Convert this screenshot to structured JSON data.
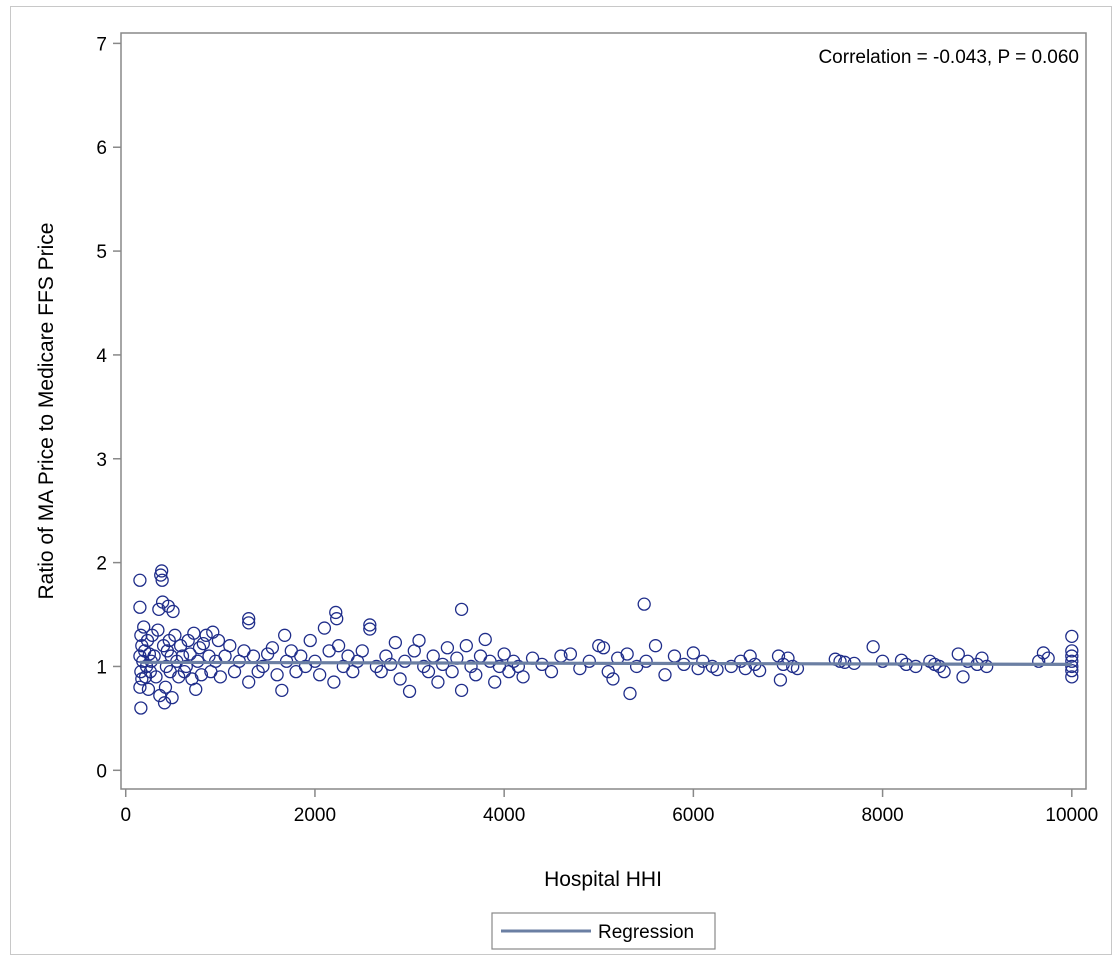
{
  "chart_data": {
    "type": "scatter",
    "xlabel": "Hospital HHI",
    "ylabel": "Ratio of  MA Price to Medicare FFS Price",
    "annotation": "Correlation = -0.043, P = 0.060",
    "xlim": [
      -50,
      10150
    ],
    "ylim": [
      -0.18,
      7.1
    ],
    "xticks": [
      0,
      2000,
      4000,
      6000,
      8000,
      10000
    ],
    "yticks": [
      0,
      1,
      2,
      3,
      4,
      5,
      6,
      7
    ],
    "grid": false,
    "legend": {
      "position": "bottom-center",
      "entries": [
        "Regression"
      ]
    },
    "colors": {
      "points": "#1f2d8a",
      "regression": "#6b7fa3",
      "axis": "#888888"
    },
    "regression": {
      "name": "Regression",
      "x": [
        150,
        10000
      ],
      "y": [
        1.04,
        1.02
      ]
    },
    "series": [
      {
        "marker": "open-circle",
        "points": [
          [
            150,
            1.83
          ],
          [
            150,
            1.57
          ],
          [
            160,
            1.3
          ],
          [
            170,
            1.2
          ],
          [
            150,
            1.1
          ],
          [
            160,
            0.95
          ],
          [
            150,
            0.8
          ],
          [
            160,
            0.6
          ],
          [
            170,
            0.88
          ],
          [
            180,
            1.05
          ],
          [
            190,
            1.38
          ],
          [
            200,
            1.15
          ],
          [
            210,
            0.9
          ],
          [
            220,
            1.0
          ],
          [
            230,
            1.25
          ],
          [
            240,
            0.78
          ],
          [
            250,
            1.12
          ],
          [
            260,
            0.95
          ],
          [
            270,
            1.05
          ],
          [
            280,
            1.3
          ],
          [
            300,
            1.1
          ],
          [
            320,
            0.9
          ],
          [
            340,
            1.35
          ],
          [
            350,
            1.55
          ],
          [
            360,
            0.72
          ],
          [
            370,
            1.88
          ],
          [
            380,
            1.92
          ],
          [
            385,
            1.83
          ],
          [
            390,
            1.62
          ],
          [
            400,
            1.2
          ],
          [
            410,
            0.65
          ],
          [
            420,
            0.8
          ],
          [
            430,
            1.0
          ],
          [
            440,
            1.15
          ],
          [
            450,
            1.58
          ],
          [
            460,
            1.25
          ],
          [
            470,
            0.95
          ],
          [
            480,
            1.1
          ],
          [
            490,
            0.7
          ],
          [
            500,
            1.53
          ],
          [
            520,
            1.3
          ],
          [
            540,
            1.05
          ],
          [
            560,
            0.9
          ],
          [
            580,
            1.2
          ],
          [
            600,
            1.1
          ],
          [
            620,
            0.95
          ],
          [
            640,
            1.0
          ],
          [
            660,
            1.25
          ],
          [
            680,
            1.12
          ],
          [
            700,
            0.88
          ],
          [
            720,
            1.32
          ],
          [
            740,
            0.78
          ],
          [
            760,
            1.05
          ],
          [
            780,
            1.18
          ],
          [
            800,
            0.92
          ],
          [
            820,
            1.22
          ],
          [
            850,
            1.3
          ],
          [
            880,
            1.1
          ],
          [
            900,
            0.95
          ],
          [
            920,
            1.33
          ],
          [
            950,
            1.05
          ],
          [
            980,
            1.25
          ],
          [
            1000,
            0.9
          ],
          [
            1050,
            1.1
          ],
          [
            1100,
            1.2
          ],
          [
            1150,
            0.95
          ],
          [
            1200,
            1.05
          ],
          [
            1250,
            1.15
          ],
          [
            1300,
            1.46
          ],
          [
            1300,
            1.42
          ],
          [
            1300,
            0.85
          ],
          [
            1350,
            1.1
          ],
          [
            1400,
            0.95
          ],
          [
            1450,
            1.0
          ],
          [
            1500,
            1.12
          ],
          [
            1550,
            1.18
          ],
          [
            1600,
            0.92
          ],
          [
            1650,
            0.77
          ],
          [
            1680,
            1.3
          ],
          [
            1700,
            1.05
          ],
          [
            1750,
            1.15
          ],
          [
            1800,
            0.95
          ],
          [
            1850,
            1.1
          ],
          [
            1900,
            1.0
          ],
          [
            1950,
            1.25
          ],
          [
            2000,
            1.05
          ],
          [
            2050,
            0.92
          ],
          [
            2100,
            1.37
          ],
          [
            2150,
            1.15
          ],
          [
            2200,
            0.85
          ],
          [
            2220,
            1.52
          ],
          [
            2230,
            1.46
          ],
          [
            2250,
            1.2
          ],
          [
            2300,
            1.0
          ],
          [
            2350,
            1.1
          ],
          [
            2400,
            0.95
          ],
          [
            2450,
            1.05
          ],
          [
            2500,
            1.15
          ],
          [
            2580,
            1.4
          ],
          [
            2580,
            1.36
          ],
          [
            2650,
            1.0
          ],
          [
            2700,
            0.95
          ],
          [
            2750,
            1.1
          ],
          [
            2800,
            1.02
          ],
          [
            2850,
            1.23
          ],
          [
            2900,
            0.88
          ],
          [
            2950,
            1.05
          ],
          [
            3000,
            0.76
          ],
          [
            3050,
            1.15
          ],
          [
            3100,
            1.25
          ],
          [
            3150,
            1.0
          ],
          [
            3200,
            0.95
          ],
          [
            3250,
            1.1
          ],
          [
            3300,
            0.85
          ],
          [
            3350,
            1.02
          ],
          [
            3400,
            1.18
          ],
          [
            3450,
            0.95
          ],
          [
            3500,
            1.08
          ],
          [
            3550,
            1.55
          ],
          [
            3550,
            0.77
          ],
          [
            3600,
            1.2
          ],
          [
            3650,
            1.0
          ],
          [
            3700,
            0.92
          ],
          [
            3750,
            1.1
          ],
          [
            3800,
            1.26
          ],
          [
            3850,
            1.05
          ],
          [
            3900,
            0.85
          ],
          [
            3950,
            1.0
          ],
          [
            4000,
            1.12
          ],
          [
            4050,
            0.95
          ],
          [
            4100,
            1.05
          ],
          [
            4150,
            1.0
          ],
          [
            4200,
            0.9
          ],
          [
            4300,
            1.08
          ],
          [
            4400,
            1.02
          ],
          [
            4500,
            0.95
          ],
          [
            4600,
            1.1
          ],
          [
            4700,
            1.12
          ],
          [
            4800,
            0.98
          ],
          [
            4900,
            1.05
          ],
          [
            5000,
            1.2
          ],
          [
            5050,
            1.18
          ],
          [
            5100,
            0.95
          ],
          [
            5150,
            0.88
          ],
          [
            5200,
            1.08
          ],
          [
            5300,
            1.12
          ],
          [
            5330,
            0.74
          ],
          [
            5400,
            1.0
          ],
          [
            5480,
            1.6
          ],
          [
            5500,
            1.05
          ],
          [
            5600,
            1.2
          ],
          [
            5700,
            0.92
          ],
          [
            5800,
            1.1
          ],
          [
            5900,
            1.02
          ],
          [
            6000,
            1.13
          ],
          [
            6050,
            0.98
          ],
          [
            6100,
            1.05
          ],
          [
            6200,
            1.0
          ],
          [
            6250,
            0.97
          ],
          [
            6400,
            1.0
          ],
          [
            6500,
            1.05
          ],
          [
            6550,
            0.98
          ],
          [
            6600,
            1.1
          ],
          [
            6650,
            1.02
          ],
          [
            6700,
            0.96
          ],
          [
            6900,
            1.1
          ],
          [
            6920,
            0.87
          ],
          [
            6950,
            1.02
          ],
          [
            7000,
            1.08
          ],
          [
            7050,
            1.0
          ],
          [
            7100,
            0.98
          ],
          [
            7500,
            1.07
          ],
          [
            7550,
            1.05
          ],
          [
            7600,
            1.04
          ],
          [
            7700,
            1.03
          ],
          [
            7900,
            1.19
          ],
          [
            8000,
            1.05
          ],
          [
            8200,
            1.06
          ],
          [
            8250,
            1.02
          ],
          [
            8350,
            1.0
          ],
          [
            8500,
            1.05
          ],
          [
            8550,
            1.02
          ],
          [
            8600,
            1.0
          ],
          [
            8650,
            0.95
          ],
          [
            8800,
            1.12
          ],
          [
            8850,
            0.9
          ],
          [
            8900,
            1.05
          ],
          [
            9000,
            1.02
          ],
          [
            9050,
            1.08
          ],
          [
            9100,
            1.0
          ],
          [
            9650,
            1.05
          ],
          [
            9700,
            1.13
          ],
          [
            9750,
            1.08
          ],
          [
            10000,
            1.29
          ],
          [
            10000,
            1.15
          ],
          [
            10000,
            1.05
          ],
          [
            10000,
            0.96
          ],
          [
            10000,
            0.9
          ],
          [
            10000,
            1.0
          ],
          [
            10000,
            1.1
          ]
        ]
      }
    ]
  }
}
